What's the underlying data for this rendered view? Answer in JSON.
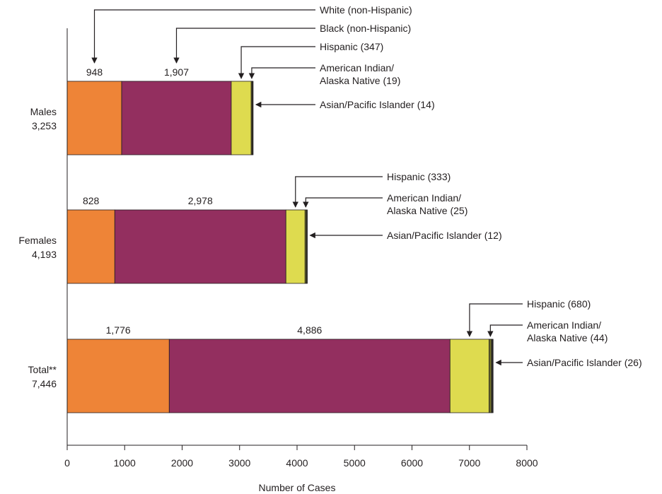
{
  "chart_data": {
    "type": "bar",
    "orientation": "horizontal",
    "stacked": true,
    "xlabel": "Number of Cases",
    "xlim": [
      0,
      8000
    ],
    "xticks": [
      0,
      1000,
      2000,
      3000,
      4000,
      5000,
      6000,
      7000,
      8000
    ],
    "grid": false,
    "categories": [
      {
        "name": "Males",
        "total": "3,253"
      },
      {
        "name": "Females",
        "total": "4,193"
      },
      {
        "name": "Total**",
        "total": "7,446"
      }
    ],
    "series": [
      {
        "name": "White (non-Hispanic)",
        "color": "#ee8437",
        "values": [
          948,
          828,
          1776
        ],
        "labels": [
          "948",
          "828",
          "1,776"
        ]
      },
      {
        "name": "Black (non-Hispanic)",
        "color": "#932f5f",
        "values": [
          1907,
          2978,
          4886
        ],
        "labels": [
          "1,907",
          "2,978",
          "4,886"
        ]
      },
      {
        "name": "Hispanic",
        "color": "#dedb4f",
        "values": [
          347,
          333,
          680
        ]
      },
      {
        "name": "American Indian/Alaska Native",
        "color": "#6b6b2a",
        "values": [
          19,
          25,
          44
        ]
      },
      {
        "name": "Asian/Pacific Islander",
        "color": "#2a2a2a",
        "values": [
          14,
          12,
          26
        ]
      }
    ],
    "callouts": [
      [
        {
          "series": 0,
          "lines": [
            "White (non-Hispanic)"
          ]
        },
        {
          "series": 1,
          "lines": [
            "Black (non-Hispanic)"
          ]
        },
        {
          "series": 2,
          "lines": [
            "Hispanic (347)"
          ]
        },
        {
          "series": 3,
          "lines": [
            "American Indian/",
            "Alaska Native (19)"
          ]
        },
        {
          "series": 4,
          "lines": [
            "Asian/Pacific Islander (14)"
          ]
        }
      ],
      [
        {
          "series": 2,
          "lines": [
            "Hispanic (333)"
          ]
        },
        {
          "series": 3,
          "lines": [
            "American Indian/",
            "Alaska Native (25)"
          ]
        },
        {
          "series": 4,
          "lines": [
            "Asian/Pacific Islander (12)"
          ]
        }
      ],
      [
        {
          "series": 2,
          "lines": [
            "Hispanic (680)"
          ]
        },
        {
          "series": 3,
          "lines": [
            "American Indian/",
            "Alaska Native (44)"
          ]
        },
        {
          "series": 4,
          "lines": [
            "Asian/Pacific Islander (26)"
          ]
        }
      ]
    ]
  }
}
